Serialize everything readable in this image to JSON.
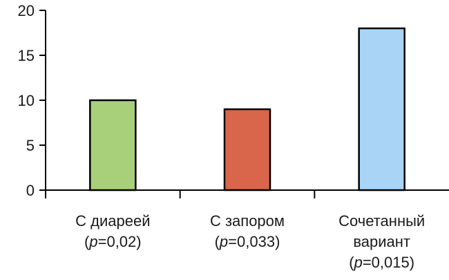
{
  "chart_data": {
    "type": "bar",
    "categories": [
      [
        "С диареей",
        "(p=0,02)"
      ],
      [
        "С запором",
        "(p=0,033)"
      ],
      [
        "Сочетанный",
        "вариант",
        "(p=0,015)"
      ]
    ],
    "values": [
      10,
      9,
      18
    ],
    "colors": [
      "#a8d07a",
      "#d9654a",
      "#a9d4f5"
    ],
    "ylim": [
      0,
      20
    ],
    "yticks": [
      0,
      5,
      10,
      15,
      20
    ],
    "ytick_labels": [
      "0",
      "5",
      "10",
      "15",
      "20"
    ],
    "grid": false,
    "title": "",
    "xlabel": "",
    "ylabel": ""
  }
}
